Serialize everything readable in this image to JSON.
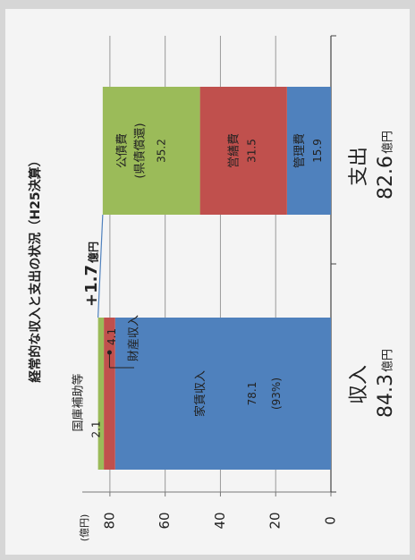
{
  "chart_data": {
    "type": "stacked_bar",
    "title": "経常的な収入と支出の状況（H25決算）",
    "unit_label": "(億円)",
    "ylim": [
      0,
      90
    ],
    "yticks": [
      0,
      20,
      40,
      60,
      80
    ],
    "grid": true,
    "stacks": [
      {
        "category": "収入",
        "total": 84.3,
        "total_unit": "億円",
        "segments": [
          {
            "name": "家賃収入",
            "value": 78.1,
            "share_label": "(93%)",
            "color": "#4f81bd"
          },
          {
            "name": "財産収入",
            "value": 4.1,
            "color": "#c0504d"
          },
          {
            "name": "国庫補助等",
            "value": 2.1,
            "color": "#9bbb59"
          }
        ]
      },
      {
        "category": "支出",
        "total": 82.6,
        "total_unit": "億円",
        "segments": [
          {
            "name": "管理費",
            "value": 15.9,
            "color": "#4f81bd"
          },
          {
            "name": "営繕費",
            "value": 31.5,
            "color": "#c0504d"
          },
          {
            "name": "公債費",
            "subname": "(県債償還)",
            "value": 35.2,
            "color": "#9bbb59"
          }
        ]
      }
    ],
    "difference": {
      "value": 1.7,
      "label": "+1.7",
      "unit": "億円"
    }
  }
}
